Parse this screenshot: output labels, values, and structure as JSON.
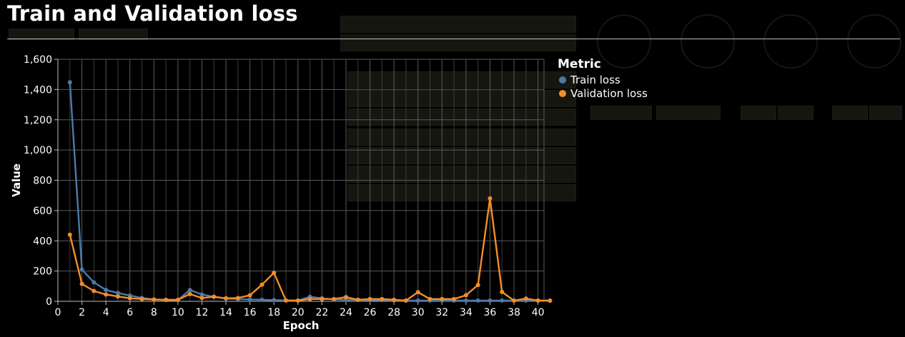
{
  "page_title": "Train and Validation loss",
  "chart_data": {
    "type": "line",
    "title": "Train and Validation loss",
    "xlabel": "Epoch",
    "ylabel": "Value",
    "xlim": [
      0,
      40.5
    ],
    "ylim": [
      0,
      1600
    ],
    "x_ticks": [
      0,
      2,
      4,
      6,
      8,
      10,
      12,
      14,
      16,
      18,
      20,
      22,
      24,
      26,
      28,
      30,
      32,
      34,
      36,
      38,
      40
    ],
    "y_ticks": [
      0,
      200,
      400,
      600,
      800,
      1000,
      1200,
      1400,
      1600
    ],
    "y_tick_labels": [
      "0",
      "200",
      "400",
      "600",
      "800",
      "1,000",
      "1,200",
      "1,400",
      "1,600"
    ],
    "grid": true,
    "legend": {
      "title": "Metric",
      "position": "right"
    },
    "x": [
      1,
      2,
      3,
      4,
      5,
      6,
      7,
      8,
      9,
      10,
      11,
      12,
      13,
      14,
      15,
      16,
      17,
      18,
      19,
      20,
      21,
      22,
      23,
      24,
      25,
      26,
      27,
      28,
      29,
      30,
      31,
      32,
      33,
      34,
      35,
      36,
      37,
      38,
      39,
      40,
      41
    ],
    "series": [
      {
        "name": "Train loss",
        "color": "#4e79a7",
        "values": [
          1448,
          210,
          125,
          75,
          55,
          38,
          22,
          12,
          8,
          8,
          75,
          45,
          30,
          18,
          15,
          12,
          10,
          8,
          6,
          5,
          30,
          20,
          12,
          10,
          10,
          8,
          8,
          5,
          5,
          5,
          5,
          5,
          5,
          5,
          5,
          5,
          5,
          5,
          5,
          5,
          3
        ]
      },
      {
        "name": "Validation loss",
        "color": "#f28e2b",
        "values": [
          440,
          115,
          68,
          45,
          32,
          20,
          15,
          12,
          10,
          10,
          48,
          22,
          30,
          20,
          22,
          40,
          110,
          188,
          5,
          5,
          15,
          15,
          15,
          28,
          10,
          15,
          15,
          10,
          5,
          60,
          15,
          15,
          15,
          40,
          108,
          680,
          62,
          5,
          18,
          5,
          5
        ]
      }
    ]
  }
}
